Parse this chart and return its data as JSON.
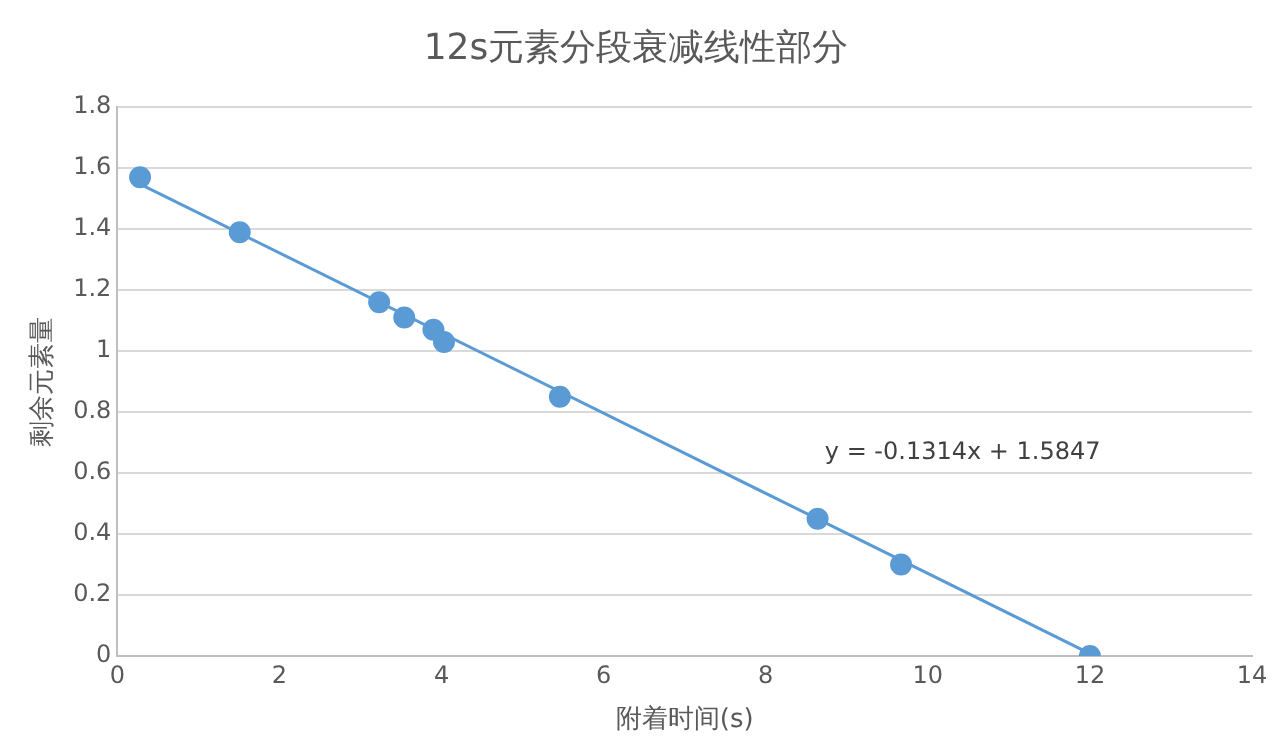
{
  "chart_data": {
    "type": "scatter",
    "title": "12s元素分段衰减线性部分",
    "xlabel": "附着时间(s)",
    "ylabel": "剩余元素量",
    "xlim": [
      0,
      14
    ],
    "xticks": [
      0,
      2,
      4,
      6,
      8,
      10,
      12,
      14
    ],
    "ylim": [
      0,
      1.8
    ],
    "yticks": [
      0,
      {
        "value": 0.2,
        "label": "0.2"
      },
      {
        "value": 0.4,
        "label": "0.4"
      },
      {
        "value": 0.6,
        "label": "0.6"
      },
      {
        "value": 0.8,
        "label": "0.8"
      },
      1,
      {
        "value": 1.2,
        "label": "1.2"
      },
      {
        "value": 1.4,
        "label": "1.4"
      },
      {
        "value": 1.6,
        "label": "1.6"
      },
      {
        "value": 1.8,
        "label": "1.8"
      }
    ],
    "grid": "y",
    "legend": false,
    "marker": "circle",
    "series": [
      {
        "color": "#5b9bd5",
        "x": [
          0.28,
          1.51,
          3.23,
          3.54,
          3.9,
          4.03,
          5.46,
          8.64,
          9.67,
          12
        ],
        "values": [
          1.57,
          1.39,
          1.16,
          1.11,
          1.07,
          1.03,
          0.85,
          0.45,
          0.3,
          0
        ]
      },
      {
        "type": "line",
        "marker": "none",
        "color": "#5b9bd5",
        "x": [
          0.28,
          12
        ],
        "values": [
          1.548,
          0.008
        ]
      }
    ],
    "annotations": [
      "y = -0.1314x + 1.5847"
    ]
  }
}
